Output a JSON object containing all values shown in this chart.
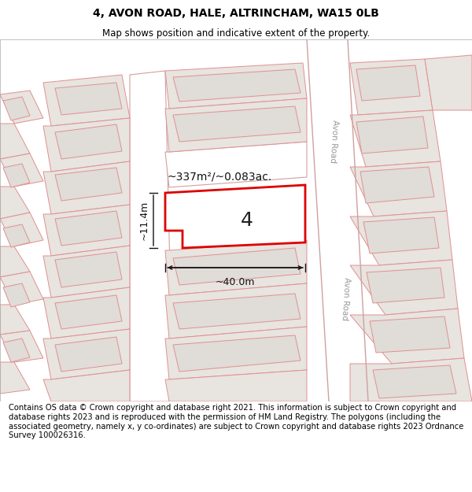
{
  "title": "4, AVON ROAD, HALE, ALTRINCHAM, WA15 0LB",
  "subtitle": "Map shows position and indicative extent of the property.",
  "footer": "Contains OS data © Crown copyright and database right 2021. This information is subject to Crown copyright and database rights 2023 and is reproduced with the permission of HM Land Registry. The polygons (including the associated geometry, namely x, y co-ordinates) are subject to Crown copyright and database rights 2023 Ordnance Survey 100026316.",
  "map_bg": "#f8f6f4",
  "parcel_fill": "#e8e4e0",
  "parcel_edge": "#e09090",
  "road_fill": "#ffffff",
  "road_edge": "#d0a0a0",
  "highlight_fill": "#ffffff",
  "highlight_edge": "#dd0000",
  "avon_road_label": "Avon Road",
  "area_label": "~337m²/~0.083ac.",
  "parcel_number": "4",
  "dim_width": "~40.0m",
  "dim_height": "~11.4m",
  "title_fontsize": 10,
  "subtitle_fontsize": 8.5,
  "footer_fontsize": 7.2,
  "label_fontsize": 10,
  "number_fontsize": 18
}
